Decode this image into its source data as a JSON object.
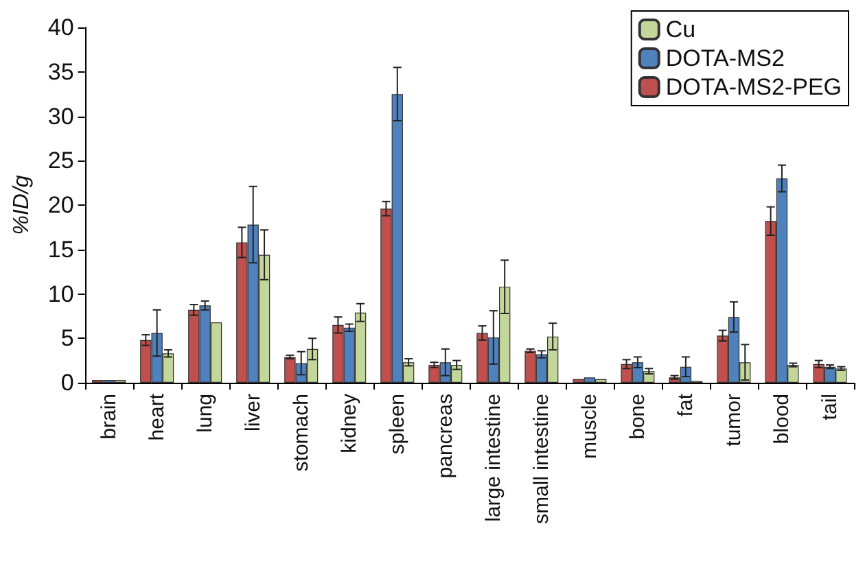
{
  "chart_data": {
    "type": "bar",
    "ylabel": "%ID/g",
    "categories": [
      "brain",
      "heart",
      "lung",
      "liver",
      "stomach",
      "kidney",
      "spleen",
      "pancreas",
      "large intestine",
      "small intestine",
      "muscle",
      "bone",
      "fat",
      "tumor",
      "blood",
      "tail"
    ],
    "series": [
      {
        "name": "DOTA-MS2-PEG",
        "color": "#c0504d",
        "values": [
          0.3,
          4.8,
          8.2,
          15.8,
          2.9,
          6.5,
          19.6,
          2.0,
          5.6,
          3.6,
          0.4,
          2.1,
          0.6,
          5.3,
          18.2,
          2.1
        ],
        "errors": [
          null,
          0.6,
          0.6,
          1.7,
          0.2,
          0.9,
          0.8,
          0.3,
          0.8,
          0.2,
          null,
          0.5,
          0.2,
          0.6,
          1.6,
          0.4
        ]
      },
      {
        "name": "DOTA-MS2",
        "color": "#4f81bd",
        "values": [
          0.3,
          5.6,
          8.7,
          17.8,
          2.2,
          6.2,
          32.5,
          2.3,
          5.1,
          3.2,
          0.6,
          2.3,
          1.8,
          7.4,
          23.0,
          1.8
        ],
        "errors": [
          null,
          2.6,
          0.5,
          4.3,
          1.3,
          0.4,
          3.0,
          1.5,
          3.0,
          0.4,
          null,
          0.6,
          1.1,
          1.7,
          1.5,
          0.2
        ]
      },
      {
        "name": "Cu",
        "color": "#c4d79b",
        "values": [
          0.3,
          3.3,
          6.8,
          14.4,
          3.8,
          7.9,
          2.3,
          2.0,
          10.8,
          5.2,
          0.4,
          1.3,
          0.2,
          2.3,
          2.0,
          1.6
        ],
        "errors": [
          null,
          0.4,
          null,
          2.8,
          1.2,
          1.0,
          0.4,
          0.5,
          3.0,
          1.5,
          null,
          0.3,
          null,
          2.0,
          0.2,
          0.2
        ]
      }
    ],
    "ylim": [
      0,
      40
    ],
    "yticks": [
      0,
      5,
      10,
      15,
      20,
      25,
      30,
      35,
      40
    ],
    "grid": false,
    "legend": "top right"
  }
}
